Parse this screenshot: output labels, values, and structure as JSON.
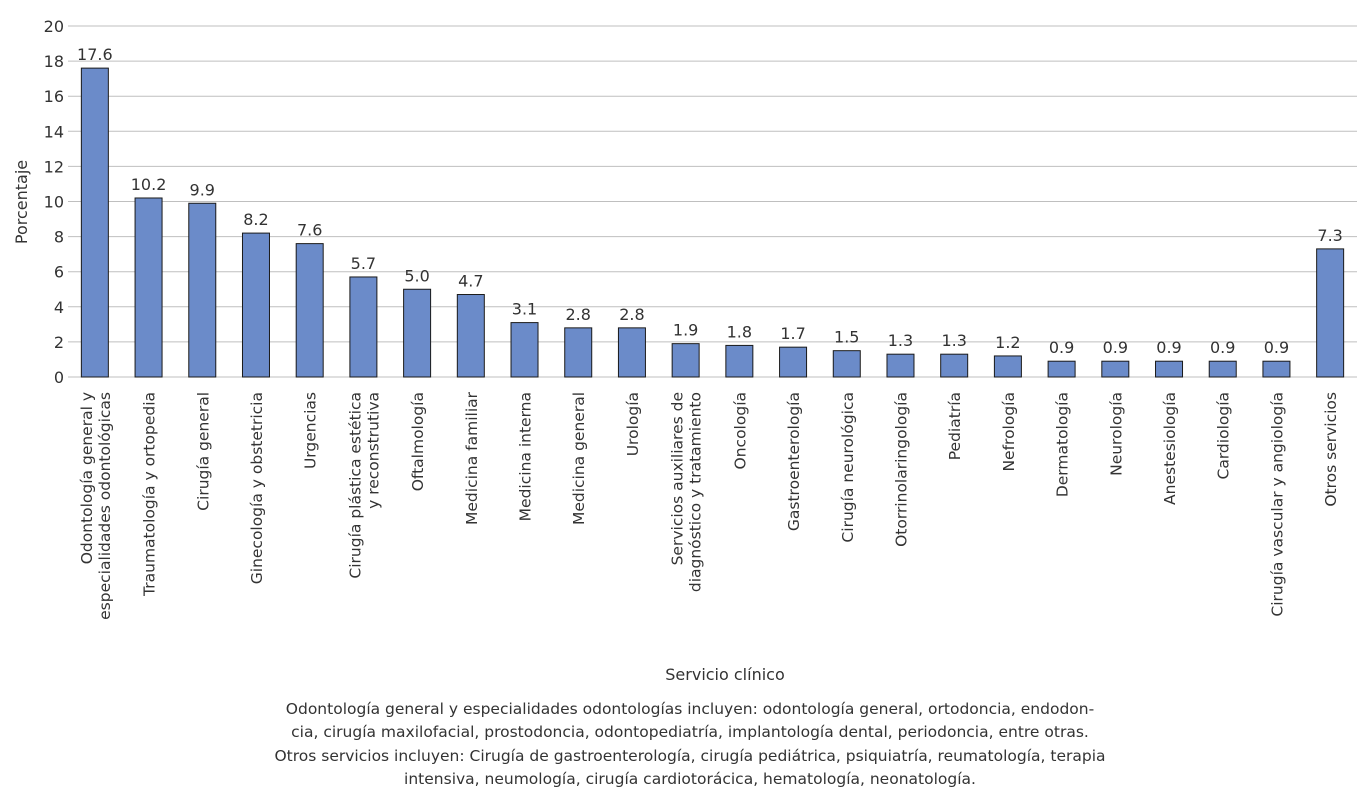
{
  "chart_data": {
    "type": "bar",
    "title": "",
    "xlabel": "Servicio clínico",
    "ylabel": "Porcentaje",
    "ylim": [
      0,
      20
    ],
    "yticks": [
      0,
      2,
      4,
      6,
      8,
      10,
      12,
      14,
      16,
      18,
      20
    ],
    "ytick_labels": [
      "0",
      "2",
      "4",
      "6",
      "8",
      "10",
      "12",
      "14",
      "16",
      "18",
      "20"
    ],
    "grid": true,
    "legend": "none",
    "categories": [
      [
        "Odontología general y",
        "especialidades odontológicas"
      ],
      [
        "Traumatología y ortopedia"
      ],
      [
        "Cirugía general"
      ],
      [
        "Ginecología y obstetricia"
      ],
      [
        "Urgencias"
      ],
      [
        "Cirugía plástica estética",
        "y reconstrutiva"
      ],
      [
        "Oftalmología"
      ],
      [
        "Medicina familiar"
      ],
      [
        "Medicina interna"
      ],
      [
        "Medicina general"
      ],
      [
        "Urología"
      ],
      [
        "Servicios auxiliares de",
        "diagnóstico y tratamiento"
      ],
      [
        "Oncología"
      ],
      [
        "Gastroenterología"
      ],
      [
        "Cirugía neurológica"
      ],
      [
        "Otorrinolaringología"
      ],
      [
        "Pediatría"
      ],
      [
        "Nefrología"
      ],
      [
        "Dermatología"
      ],
      [
        "Neurología"
      ],
      [
        "Anestesiología"
      ],
      [
        "Cardiología"
      ],
      [
        "Cirugía vascular y angiología"
      ],
      [
        "Otros servicios"
      ]
    ],
    "values": [
      17.6,
      10.2,
      9.9,
      8.2,
      7.6,
      5.7,
      5.0,
      4.7,
      3.1,
      2.8,
      2.8,
      1.9,
      1.8,
      1.7,
      1.5,
      1.3,
      1.3,
      1.2,
      0.9,
      0.9,
      0.9,
      0.9,
      0.9,
      7.3
    ],
    "value_labels": [
      "17.6",
      "10.2",
      "9.9",
      "8.2",
      "7.6",
      "5.7",
      "5.0",
      "4.7",
      "3.1",
      "2.8",
      "2.8",
      "1.9",
      "1.8",
      "1.7",
      "1.5",
      "1.3",
      "1.3",
      "1.2",
      "0.9",
      "0.9",
      "0.9",
      "0.9",
      "0.9",
      "7.3"
    ],
    "colors": {
      "bar_fill": "#6b8bc9",
      "bar_stroke": "#1a1a1a",
      "grid": "#bfbfbf",
      "text": "#333333"
    }
  },
  "notes": [
    "Odontología general y especialidades odontologías incluyen: odontología general, ortodoncia, endodon-",
    "cia, cirugía maxilofacial, prostodoncia, odontopediatría, implantología dental, periodoncia, entre otras.",
    "Otros servicios incluyen: Cirugía de gastroenterología, cirugía pediátrica, psiquiatría, reumatología, terapia",
    "intensiva, neumología, cirugía cardiotorácica, hematología, neonatología."
  ]
}
